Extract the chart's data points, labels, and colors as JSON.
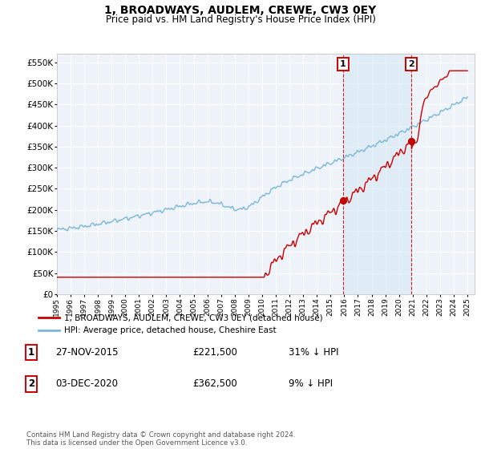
{
  "title": "1, BROADWAYS, AUDLEM, CREWE, CW3 0EY",
  "subtitle": "Price paid vs. HM Land Registry's House Price Index (HPI)",
  "ylim": [
    0,
    570000
  ],
  "yticks": [
    0,
    50000,
    100000,
    150000,
    200000,
    250000,
    300000,
    350000,
    400000,
    450000,
    500000,
    550000
  ],
  "ytick_labels": [
    "£0",
    "£50K",
    "£100K",
    "£150K",
    "£200K",
    "£250K",
    "£300K",
    "£350K",
    "£400K",
    "£450K",
    "£500K",
    "£550K"
  ],
  "hpi_color": "#7ab8d9",
  "price_color": "#cc0000",
  "vline_color": "#cc0000",
  "shade_color": "#d6e8f5",
  "background_chart": "#eef2f9",
  "background_fig": "#ffffff",
  "grid_color": "#ffffff",
  "ann1_x": 2015.91,
  "ann1_price": 221500,
  "ann2_x": 2020.92,
  "ann2_price": 362500,
  "hpi1_target": 320870,
  "hpi2_target": 398352,
  "legend_line1": "1, BROADWAYS, AUDLEM, CREWE, CW3 0EY (detached house)",
  "legend_line2": "HPI: Average price, detached house, Cheshire East",
  "ann1_label": "1",
  "ann2_label": "2",
  "ann1_text": "27-NOV-2015",
  "ann1_amount": "£221,500",
  "ann1_pct": "31% ↓ HPI",
  "ann2_text": "03-DEC-2020",
  "ann2_amount": "£362,500",
  "ann2_pct": "9% ↓ HPI",
  "footer": "Contains HM Land Registry data © Crown copyright and database right 2024.\nThis data is licensed under the Open Government Licence v3.0.",
  "xlim_left": 1995.0,
  "xlim_right": 2025.5
}
